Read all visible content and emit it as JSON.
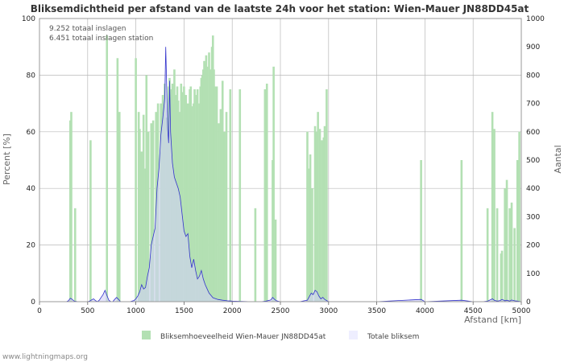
{
  "chart_data": {
    "type": "bar",
    "title": "Bliksemdichtheid per afstand van de laatste 24h voor het station: Wien-Mauer JN88DD45at",
    "xlabel": "Afstand   [km]",
    "ylabel_left": "Percent   [%]",
    "ylabel_right": "Aantal",
    "xlim": [
      0,
      5000
    ],
    "ylim_left": [
      0,
      100
    ],
    "ylim_right": [
      0,
      1000
    ],
    "x_ticks": [
      "0",
      "500",
      "1000",
      "1500",
      "2000",
      "2500",
      "3000",
      "3500",
      "4000",
      "4500",
      "5000"
    ],
    "y_left_ticks": [
      "0",
      "20",
      "40",
      "60",
      "80",
      "100"
    ],
    "y_right_ticks": [
      "0",
      "100",
      "200",
      "300",
      "400",
      "500",
      "600",
      "700",
      "800",
      "900",
      "1000"
    ],
    "annotations": [
      "9.252 totaal inslagen",
      "6.451 totaal inslagen station"
    ],
    "colors": {
      "bars": "#b3e0b3",
      "line": "#3333cc",
      "line_fill": "#d0d0f5",
      "grid": "#b8b8b8"
    },
    "series": [
      {
        "name": "Bliksemhoeveelheid Wien-Mauer JN88DD45at",
        "axis": "left",
        "x": [
          320,
          330,
          370,
          530,
          700,
          810,
          830,
          1000,
          1030,
          1040,
          1060,
          1080,
          1100,
          1110,
          1130,
          1160,
          1180,
          1210,
          1230,
          1260,
          1280,
          1300,
          1320,
          1340,
          1350,
          1370,
          1380,
          1390,
          1400,
          1420,
          1430,
          1440,
          1460,
          1470,
          1480,
          1500,
          1510,
          1520,
          1540,
          1560,
          1570,
          1580,
          1600,
          1610,
          1630,
          1640,
          1660,
          1670,
          1680,
          1690,
          1700,
          1710,
          1720,
          1730,
          1740,
          1760,
          1770,
          1790,
          1800,
          1810,
          1820,
          1840,
          1860,
          1880,
          1900,
          1920,
          1940,
          1980,
          2080,
          2240,
          2340,
          2360,
          2420,
          2430,
          2450,
          2780,
          2800,
          2810,
          2830,
          2860,
          2870,
          2890,
          2910,
          2930,
          2950,
          2960,
          2980,
          3960,
          4380,
          4650,
          4700,
          4720,
          4750,
          4790,
          4800,
          4830,
          4850,
          4880,
          4900,
          4930,
          4960,
          4980
        ],
        "values": [
          64,
          67,
          33,
          57,
          94,
          86,
          67,
          86,
          67,
          61,
          53,
          66,
          47,
          80,
          60,
          63,
          64,
          67,
          70,
          70,
          73,
          77,
          65,
          76,
          79,
          75,
          77,
          70,
          82,
          73,
          76,
          71,
          67,
          77,
          74,
          76,
          64,
          73,
          70,
          75,
          76,
          69,
          70,
          75,
          73,
          75,
          70,
          76,
          79,
          80,
          82,
          85,
          84,
          87,
          83,
          88,
          82,
          90,
          94,
          82,
          76,
          76,
          63,
          68,
          78,
          60,
          67,
          75,
          75,
          33,
          75,
          77,
          50,
          83,
          29,
          60,
          47,
          52,
          40,
          62,
          60,
          67,
          61,
          57,
          58,
          62,
          75,
          50,
          50,
          33,
          67,
          61,
          33,
          17,
          18,
          40,
          43,
          33,
          35,
          26,
          50,
          60
        ]
      },
      {
        "name": "Totale bliksem",
        "axis": "right",
        "x": [
          0,
          100,
          200,
          280,
          300,
          320,
          340,
          360,
          400,
          450,
          500,
          520,
          540,
          560,
          580,
          600,
          620,
          640,
          660,
          680,
          700,
          720,
          740,
          760,
          780,
          800,
          820,
          840,
          860,
          880,
          900,
          920,
          940,
          960,
          980,
          1000,
          1020,
          1040,
          1060,
          1080,
          1100,
          1120,
          1140,
          1160,
          1180,
          1200,
          1220,
          1240,
          1260,
          1280,
          1300,
          1310,
          1320,
          1330,
          1340,
          1350,
          1360,
          1380,
          1400,
          1420,
          1440,
          1460,
          1480,
          1500,
          1520,
          1540,
          1560,
          1580,
          1600,
          1620,
          1640,
          1660,
          1680,
          1700,
          1720,
          1740,
          1760,
          1780,
          1800,
          1850,
          1900,
          1950,
          2000,
          2100,
          2200,
          2300,
          2350,
          2400,
          2420,
          2440,
          2460,
          2500,
          2600,
          2700,
          2780,
          2800,
          2820,
          2840,
          2860,
          2880,
          2900,
          2920,
          2940,
          2960,
          2980,
          3000,
          3100,
          3500,
          3960,
          4000,
          4380,
          4500,
          4600,
          4650,
          4700,
          4720,
          4750,
          4780,
          4800,
          4830,
          4850,
          4880,
          4900,
          4930,
          4960,
          5000
        ],
        "values": [
          0,
          0,
          0,
          0,
          3,
          12,
          8,
          2,
          0,
          0,
          0,
          2,
          6,
          10,
          4,
          0,
          5,
          15,
          25,
          40,
          22,
          5,
          0,
          0,
          8,
          15,
          8,
          0,
          0,
          0,
          0,
          0,
          0,
          2,
          4,
          10,
          20,
          35,
          60,
          45,
          50,
          90,
          120,
          200,
          230,
          260,
          400,
          470,
          590,
          650,
          720,
          900,
          760,
          610,
          560,
          780,
          600,
          490,
          440,
          420,
          400,
          370,
          310,
          250,
          230,
          240,
          160,
          120,
          150,
          110,
          80,
          90,
          110,
          80,
          60,
          45,
          30,
          22,
          14,
          8,
          5,
          3,
          2,
          1,
          0,
          0,
          2,
          6,
          15,
          8,
          3,
          0,
          0,
          0,
          5,
          18,
          30,
          25,
          40,
          35,
          20,
          10,
          15,
          8,
          4,
          0,
          0,
          0,
          8,
          0,
          5,
          0,
          0,
          2,
          10,
          5,
          2,
          4,
          8,
          3,
          5,
          2,
          6,
          3,
          2,
          0
        ]
      }
    ],
    "legend": [
      {
        "label": "Bliksemhoeveelheid Wien-Mauer JN88DD45at",
        "color": "#b3e0b3"
      },
      {
        "label": "Totale bliksem",
        "color": "#eef"
      }
    ],
    "legend_position": "bottom"
  },
  "footer": "www.lightningmaps.org"
}
